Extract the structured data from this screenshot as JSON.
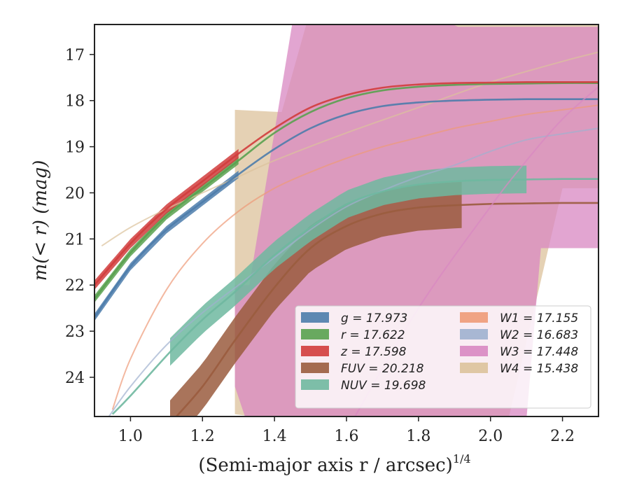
{
  "chart_data": {
    "type": "line",
    "xlabel": "(Semi-major axis r / arcsec)",
    "xlabel_sup": "1/4",
    "ylabel": "m(< r) (mag)",
    "xlim": [
      0.9,
      2.3
    ],
    "ylim": [
      24.85,
      16.35
    ],
    "y_inverted": true,
    "x_ticks": [
      "1.0",
      "1.2",
      "1.4",
      "1.6",
      "1.8",
      "2.0",
      "2.2"
    ],
    "y_ticks": [
      "17",
      "18",
      "19",
      "20",
      "21",
      "22",
      "23",
      "24"
    ],
    "grid": false,
    "legend_position": "lower-right",
    "series": [
      {
        "name": "g = 17.973",
        "color": "#4c7cab",
        "x": [
          0.9,
          1.0,
          1.1,
          1.2,
          1.3,
          1.4,
          1.5,
          1.6,
          1.7,
          1.8,
          1.9,
          2.0,
          2.1,
          2.2,
          2.3
        ],
        "y": [
          22.7,
          21.6,
          20.8,
          20.2,
          19.6,
          19.05,
          18.6,
          18.3,
          18.12,
          18.04,
          18.0,
          17.98,
          17.97,
          17.97,
          17.97
        ],
        "band": {
          "x": [
            0.9,
            1.3
          ],
          "half_width": 0.08
        }
      },
      {
        "name": "r = 17.622",
        "color": "#59a14f",
        "x": [
          0.9,
          1.0,
          1.1,
          1.2,
          1.3,
          1.4,
          1.5,
          1.6,
          1.7,
          1.8,
          1.9,
          2.0,
          2.1,
          2.2,
          2.3
        ],
        "y": [
          22.3,
          21.3,
          20.5,
          19.9,
          19.3,
          18.7,
          18.25,
          17.95,
          17.78,
          17.7,
          17.66,
          17.64,
          17.63,
          17.62,
          17.62
        ],
        "band": {
          "x": [
            0.9,
            1.3
          ],
          "half_width": 0.08
        }
      },
      {
        "name": "z = 17.598",
        "color": "#d13c3c",
        "x": [
          0.9,
          1.0,
          1.1,
          1.2,
          1.3,
          1.4,
          1.5,
          1.6,
          1.7,
          1.8,
          1.9,
          2.0,
          2.1,
          2.2,
          2.3
        ],
        "y": [
          22.0,
          21.1,
          20.35,
          19.75,
          19.15,
          18.6,
          18.15,
          17.88,
          17.72,
          17.65,
          17.62,
          17.61,
          17.6,
          17.6,
          17.6
        ],
        "band": {
          "x": [
            0.9,
            1.3
          ],
          "half_width": 0.1
        }
      },
      {
        "name": "FUV = 20.218",
        "color": "#9a5c3e",
        "x": [
          1.11,
          1.2,
          1.29,
          1.4,
          1.5,
          1.6,
          1.7,
          1.8,
          1.9,
          2.0,
          2.1,
          2.2,
          2.3
        ],
        "y": [
          25.0,
          24.2,
          23.2,
          22.05,
          21.2,
          20.72,
          20.45,
          20.32,
          20.27,
          20.24,
          20.23,
          20.22,
          20.22
        ],
        "band": {
          "x": [
            1.11,
            1.92
          ],
          "half_width": 0.5
        }
      },
      {
        "name": "NUV = 19.698",
        "color": "#6fb8a0",
        "x": [
          0.95,
          1.0,
          1.11,
          1.2,
          1.29,
          1.4,
          1.5,
          1.6,
          1.7,
          1.8,
          1.9,
          2.0,
          2.1,
          2.2,
          2.3
        ],
        "y": [
          24.8,
          24.4,
          23.45,
          22.75,
          22.15,
          21.35,
          20.75,
          20.25,
          19.97,
          19.82,
          19.75,
          19.72,
          19.71,
          19.7,
          19.7
        ],
        "band": {
          "x": [
            1.11,
            2.1
          ],
          "half_width": 0.3
        }
      },
      {
        "name": "W1 = 17.155",
        "color": "#ee9a78",
        "x": [
          0.95,
          1.0,
          1.1,
          1.2,
          1.3,
          1.4,
          1.5,
          1.6,
          1.7,
          1.8,
          1.9,
          2.0,
          2.1,
          2.2,
          2.3
        ],
        "y": [
          24.7,
          23.6,
          22.1,
          21.1,
          20.4,
          19.9,
          19.55,
          19.25,
          19.0,
          18.8,
          18.6,
          18.45,
          18.3,
          18.2,
          18.1
        ],
        "band": null
      },
      {
        "name": "W2 = 16.683",
        "color": "#9fb0cf",
        "x": [
          0.94,
          1.0,
          1.1,
          1.2,
          1.3,
          1.4,
          1.5,
          1.6,
          1.7,
          1.8,
          1.9,
          2.0,
          2.1,
          2.2,
          2.3
        ],
        "y": [
          24.85,
          24.2,
          23.3,
          22.6,
          22.0,
          21.4,
          20.8,
          20.3,
          19.95,
          19.65,
          19.4,
          19.1,
          18.85,
          18.72,
          18.6
        ],
        "band": null
      },
      {
        "name": "W3 = 17.448",
        "color": "#d887c2",
        "x": [
          1.62,
          1.8,
          2.0,
          2.1,
          2.2,
          2.3
        ],
        "y": [
          24.9,
          22.5,
          20.3,
          19.3,
          18.4,
          17.7
        ],
        "band": {
          "polygon_x": [
            1.29,
            1.32,
            1.5,
            1.73,
            1.87,
            1.98,
            2.04,
            2.1,
            2.14,
            2.3,
            2.3,
            1.91,
            1.88,
            1.8,
            1.69,
            1.65,
            1.45,
            1.33,
            1.29
          ],
          "polygon_y": [
            24.2,
            24.9,
            24.9,
            24.9,
            24.9,
            24.9,
            24.9,
            24.9,
            21.2,
            21.2,
            16.4,
            16.4,
            16.3,
            16.3,
            16.3,
            16.3,
            16.3,
            22.0,
            22.0
          ]
        }
      },
      {
        "name": "W4 = 15.438",
        "color": "#dcc29b",
        "x": [
          0.92,
          1.0,
          1.1,
          1.2,
          1.3,
          1.4,
          1.6,
          1.8,
          2.0,
          2.2,
          2.3
        ],
        "y": [
          21.15,
          20.75,
          20.35,
          20.0,
          19.65,
          19.3,
          18.7,
          18.15,
          17.6,
          17.15,
          16.95
        ],
        "band": {
          "polygon_x": [
            1.29,
            1.39,
            1.45,
            1.6,
            1.7,
            1.9,
            2.05,
            2.2,
            2.23,
            2.3,
            2.3,
            2.25,
            2.2,
            1.9,
            1.7,
            1.6,
            1.49,
            1.42,
            1.29
          ],
          "polygon_y": [
            24.8,
            24.9,
            24.9,
            24.9,
            24.9,
            24.9,
            24.9,
            19.9,
            19.9,
            19.9,
            16.3,
            16.3,
            16.3,
            16.3,
            16.3,
            16.3,
            16.3,
            18.25,
            18.2
          ]
        }
      }
    ]
  }
}
